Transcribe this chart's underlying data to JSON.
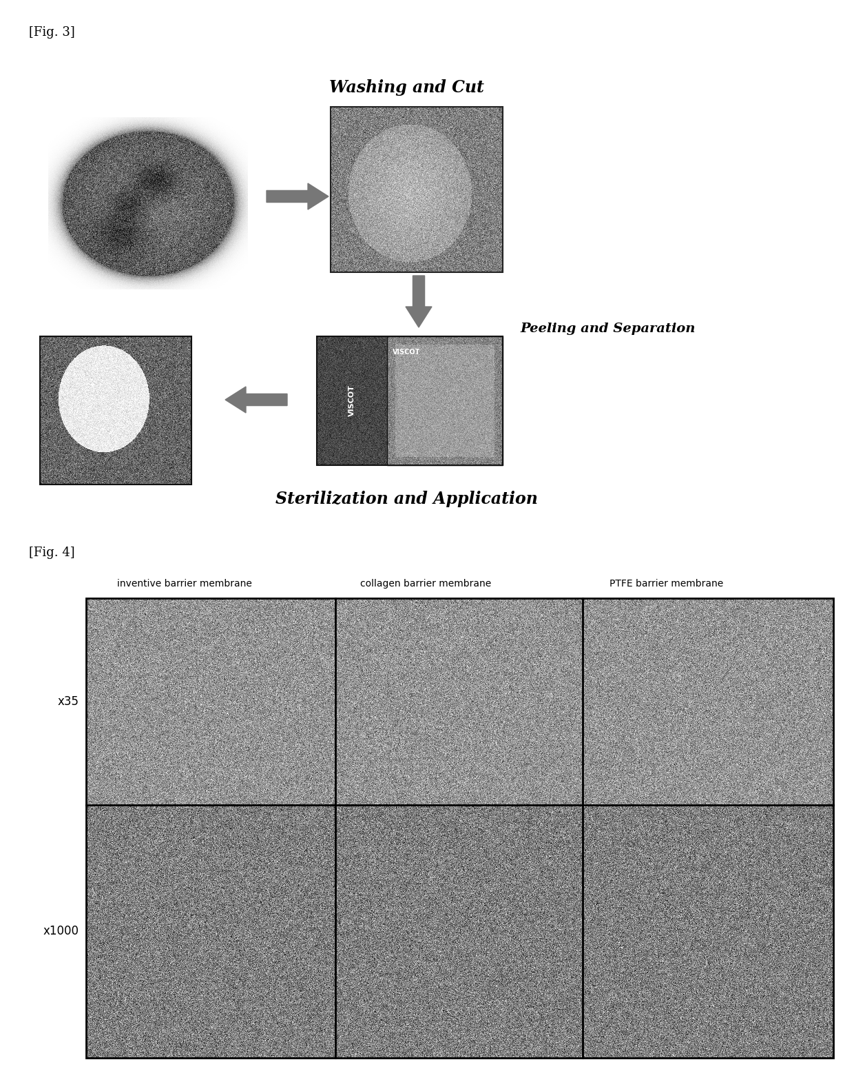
{
  "fig3_label": "[Fig. 3]",
  "fig4_label": "[Fig. 4]",
  "title_washing": "Washing and Cut",
  "title_peeling": "Peeling and Separation",
  "title_sterilization": "Sterilization and Application",
  "col1_label": "inventive barrier membrane",
  "col2_label": "collagen barrier membrane",
  "col3_label": "PTFE barrier membrane",
  "row1_label": "x35",
  "row2_label": "x1000",
  "bg_color": "#ffffff",
  "text_color": "#000000",
  "arrow_color": "#777777",
  "fig3_label_fontsize": 13,
  "fig4_label_fontsize": 13,
  "title_fontsize": 17,
  "subtitle_fontsize": 14,
  "col_label_fontsize": 10,
  "row_label_fontsize": 12
}
